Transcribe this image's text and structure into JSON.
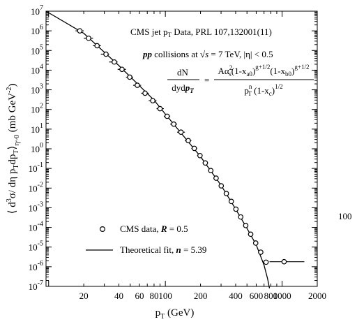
{
  "chart_data": {
    "type": "scatter",
    "x_scale": "log",
    "y_scale": "log",
    "xlim": [
      9.5,
      2000
    ],
    "ylim": [
      1e-07,
      10000000.0
    ],
    "xlabel": {
      "main": "p",
      "sub": "T",
      "unit": "(GeV)"
    },
    "ylabel": "⟨d³σ/dη p_T dp_T⟩_{η~0}   (mb GeV⁻²)",
    "x_tick_labels": [
      {
        "x": 20,
        "label": "20"
      },
      {
        "x": 40,
        "label": "40"
      },
      {
        "x": 60,
        "label": "60"
      },
      {
        "x": 80,
        "label": "80"
      },
      {
        "x": 100,
        "label": "100"
      },
      {
        "x": 200,
        "label": "200"
      },
      {
        "x": 400,
        "label": "400"
      },
      {
        "x": 600,
        "label": "600"
      },
      {
        "x": 800,
        "label": "800"
      },
      {
        "x": 1000,
        "label": "1000"
      },
      {
        "x": 2000,
        "label": "2000"
      }
    ],
    "y_tick_exponents": [
      7,
      6,
      5,
      4,
      3,
      2,
      1,
      0,
      -1,
      -2,
      -3,
      -4,
      -5,
      -6,
      -7
    ],
    "y_tick_base": "10",
    "right_label": "100",
    "title": "CMS jet p_T Data, PRL 107,132001(11)",
    "legend": [
      {
        "marker": "circle",
        "text": "CMS data, ",
        "param": "R",
        "value": " = 0.5"
      },
      {
        "marker": "line",
        "text": "Theoretical fit, ",
        "param": "n",
        "value": " = 5.39"
      }
    ],
    "annotations": {
      "title": {
        "pre": "CMS jet p",
        "sub": "T",
        "post": " Data,  PRL 107,132001(11)"
      },
      "collisions": {
        "pp": "pp",
        "mid": " collisions at ",
        "sqrt_s": "√s",
        "energy": " = 7 TeV, |η| < 0.5"
      },
      "formula": {
        "lhs_num": "dN",
        "lhs_den_pre": "dyd",
        "lhs_den_vec": "p",
        "lhs_den_sub": "T",
        "eq": "=",
        "num": "Aα²ₛ(1-xₐ₀)^(g+1/2)(1-x_b0)^(g+1/2)",
        "den": "p_T^n (1-x_c)^(1/2)"
      }
    },
    "series": [
      {
        "name": "CMS data, R = 0.5",
        "marker": "circle",
        "points": [
          {
            "x": 18.5,
            "y": 1000000.0,
            "xerr": [
              17,
              20
            ]
          },
          {
            "x": 22,
            "y": 420000.0,
            "xerr": [
              20,
              24
            ]
          },
          {
            "x": 26,
            "y": 175000.0,
            "xerr": [
              24,
              28
            ]
          },
          {
            "x": 31,
            "y": 65000.0,
            "xerr": [
              28,
              33
            ]
          },
          {
            "x": 36.5,
            "y": 26000.0,
            "xerr": [
              33,
              39
            ]
          },
          {
            "x": 42.5,
            "y": 11000.0,
            "xerr": [
              39,
              46
            ]
          },
          {
            "x": 49.5,
            "y": 4400.0,
            "xerr": [
              46,
              53
            ]
          },
          {
            "x": 57.5,
            "y": 1700.0,
            "xerr": [
              53,
              62
            ]
          },
          {
            "x": 67,
            "y": 670.0,
            "xerr": [
              62,
              72
            ]
          },
          {
            "x": 78,
            "y": 280.0,
            "xerr": [
              72,
              84
            ]
          },
          {
            "x": 90,
            "y": 110.0,
            "xerr": [
              84,
              97
            ]
          },
          {
            "x": 103.5,
            "y": 45,
            "xerr": [
              97,
              110
            ]
          },
          {
            "x": 118,
            "y": 18,
            "xerr": [
              110,
              126
            ]
          },
          {
            "x": 136,
            "y": 7.0,
            "xerr": [
              126,
              147
            ]
          },
          {
            "x": 157,
            "y": 2.6,
            "xerr": [
              147,
              167
            ]
          },
          {
            "x": 177,
            "y": 1.05,
            "xerr": [
              167,
              187
            ]
          },
          {
            "x": 198,
            "y": 0.45,
            "xerr": [
              187,
              208
            ]
          },
          {
            "x": 220,
            "y": 0.19,
            "xerr": [
              208,
              232
            ]
          },
          {
            "x": 245,
            "y": 0.078,
            "xerr": [
              232,
              258
            ]
          },
          {
            "x": 272,
            "y": 0.032,
            "xerr": [
              258,
              286
            ]
          },
          {
            "x": 301,
            "y": 0.013,
            "xerr": [
              286,
              316
            ]
          },
          {
            "x": 333,
            "y": 0.0053,
            "xerr": [
              316,
              349
            ]
          },
          {
            "x": 367,
            "y": 0.0021,
            "xerr": [
              349,
              384
            ]
          },
          {
            "x": 402,
            "y": 0.00085,
            "xerr": [
              384,
              420
            ]
          },
          {
            "x": 442,
            "y": 0.00034,
            "xerr": [
              420,
              464
            ]
          },
          {
            "x": 488,
            "y": 0.000125,
            "xerr": [
              464,
              511
            ]
          },
          {
            "x": 538,
            "y": 4.5e-05,
            "xerr": [
              511,
              565
            ]
          },
          {
            "x": 594,
            "y": 1.6e-05,
            "xerr": [
              565,
              623
            ]
          },
          {
            "x": 656,
            "y": 5.5e-06,
            "xerr": [
              623,
              690
            ]
          },
          {
            "x": 728,
            "y": 1.7e-06,
            "xerr": [
              690,
              765
            ]
          },
          {
            "x": 1040,
            "y": 1.8e-06,
            "xerr": [
              780,
              1550
            ]
          }
        ]
      },
      {
        "name": "Theoretical fit, n = 5.39",
        "type": "line",
        "points": [
          {
            "x": 9.5,
            "y": 10000000.0
          },
          {
            "x": 20,
            "y": 750000.0
          },
          {
            "x": 40,
            "y": 17000.0
          },
          {
            "x": 80,
            "y": 300.0
          },
          {
            "x": 100,
            "y": 58
          },
          {
            "x": 200,
            "y": 0.4
          },
          {
            "x": 300,
            "y": 0.014
          },
          {
            "x": 400,
            "y": 0.00085
          },
          {
            "x": 500,
            "y": 9e-05
          },
          {
            "x": 600,
            "y": 1.3e-05
          },
          {
            "x": 700,
            "y": 1.2e-06
          },
          {
            "x": 750,
            "y": 2.5e-07
          },
          {
            "x": 780,
            "y": 8e-08
          }
        ]
      }
    ]
  }
}
